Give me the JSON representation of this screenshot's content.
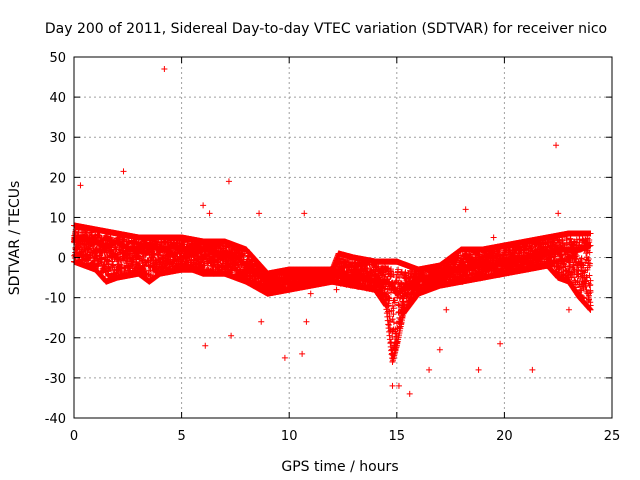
{
  "chart_data": {
    "type": "scatter",
    "title": "Day 200 of 2011, Sidereal Day-to-day VTEC variation (SDTVAR) for receiver nico",
    "xlabel": "GPS time / hours",
    "ylabel": "SDTVAR / TECUs",
    "xlim": [
      0,
      25
    ],
    "ylim": [
      -40,
      50
    ],
    "xticks": [
      0,
      5,
      10,
      15,
      20,
      25
    ],
    "yticks": [
      -40,
      -30,
      -20,
      -10,
      0,
      10,
      20,
      30,
      40,
      50
    ],
    "xtick_labels": [
      "0",
      "5",
      "10",
      "15",
      "20",
      "25"
    ],
    "ytick_labels": [
      "-40",
      "-30",
      "-20",
      "-10",
      "0",
      "10",
      "20",
      "30",
      "40",
      "50"
    ],
    "grid": true,
    "marker": "+",
    "color": "#ff0000",
    "series": [
      {
        "name": "dense band (approx. trace, hours vs TECU)",
        "x": [
          0.0,
          0.2,
          0.5,
          0.8,
          1.0,
          1.3,
          1.6,
          2.0,
          2.3,
          2.6,
          3.0,
          3.3,
          3.6,
          4.0,
          4.3,
          4.6,
          5.0,
          5.3,
          5.6,
          6.0,
          6.3,
          6.6,
          7.0,
          7.3,
          7.6,
          8.0,
          8.3,
          8.6,
          9.0,
          9.5,
          10.0,
          10.5,
          11.0,
          11.5,
          12.0,
          12.5,
          13.0,
          13.5,
          14.0,
          14.5,
          14.8,
          15.0,
          15.3,
          15.6,
          16.0,
          16.5,
          17.0,
          17.5,
          18.0,
          18.5,
          19.0,
          19.5,
          20.0,
          20.5,
          21.0,
          21.5,
          22.0,
          22.5,
          23.0,
          23.5,
          24.0
        ],
        "y": [
          4,
          5,
          5,
          4,
          4,
          3,
          3,
          4,
          3,
          2,
          2,
          3,
          3,
          2,
          2,
          3,
          2,
          2,
          1,
          2,
          2,
          1,
          1,
          1,
          0,
          -2,
          -3,
          -4,
          -6,
          -6,
          -5,
          -5,
          -4,
          -4,
          -4,
          -5,
          -5,
          -5,
          -6,
          -6,
          -7,
          -9,
          -8,
          -7,
          -5,
          -5,
          -4,
          -3,
          -3,
          -2,
          -2,
          -2,
          -1,
          -1,
          0,
          1,
          1,
          2,
          2,
          2,
          3
        ]
      },
      {
        "name": "upper envelope (approx.)",
        "x": [
          0.0,
          1.0,
          2.0,
          3.0,
          4.0,
          5.0,
          6.0,
          7.0,
          7.5,
          8.0,
          8.5,
          9.0,
          10.0,
          11.0,
          12.0,
          12.3,
          13.0,
          14.0,
          15.0,
          15.5,
          16.0,
          17.0,
          18.0,
          19.0,
          20.0,
          21.0,
          22.0,
          23.0,
          24.0
        ],
        "y": [
          8,
          7,
          6,
          5,
          5,
          5,
          4,
          4,
          3,
          2,
          -1,
          -4,
          -3,
          -3,
          -3,
          1,
          0,
          -1,
          -1,
          -2,
          -3,
          -2,
          2,
          2,
          3,
          4,
          5,
          6,
          6
        ]
      },
      {
        "name": "lower envelope (approx.)",
        "x": [
          0.0,
          1.0,
          1.5,
          2.0,
          3.0,
          3.5,
          4.0,
          5.0,
          5.5,
          6.0,
          6.5,
          7.0,
          8.0,
          9.0,
          10.0,
          11.0,
          12.0,
          13.0,
          14.0,
          14.5,
          14.8,
          15.0,
          15.3,
          16.0,
          17.0,
          18.0,
          19.0,
          20.0,
          21.0,
          22.0,
          22.5,
          23.0,
          23.5,
          24.0
        ],
        "y": [
          -1,
          -3,
          -6,
          -5,
          -4,
          -6,
          -4,
          -3,
          -3,
          -4,
          -4,
          -4,
          -6,
          -9,
          -8,
          -7,
          -6,
          -7,
          -8,
          -12,
          -26,
          -22,
          -14,
          -9,
          -7,
          -6,
          -5,
          -4,
          -3,
          -2,
          -5,
          -6,
          -10,
          -13
        ]
      },
      {
        "name": "outliers",
        "x": [
          0.3,
          2.3,
          4.2,
          6.0,
          6.3,
          6.1,
          7.2,
          7.3,
          8.6,
          8.7,
          9.8,
          10.6,
          10.7,
          10.8,
          11.0,
          12.2,
          14.8,
          15.1,
          15.6,
          16.5,
          17.0,
          17.3,
          18.2,
          18.8,
          19.5,
          19.8,
          20.2,
          21.3,
          22.4,
          22.5,
          23.0
        ],
        "y": [
          18,
          21.5,
          47,
          13,
          11,
          -22,
          19,
          -19.5,
          11,
          -16,
          -25,
          -24,
          11,
          -16,
          -9,
          -8,
          -32,
          -32,
          -34,
          -28,
          -23,
          -13,
          12,
          -28,
          5,
          -21.5,
          -3,
          -28,
          28,
          11,
          -13
        ]
      }
    ]
  }
}
